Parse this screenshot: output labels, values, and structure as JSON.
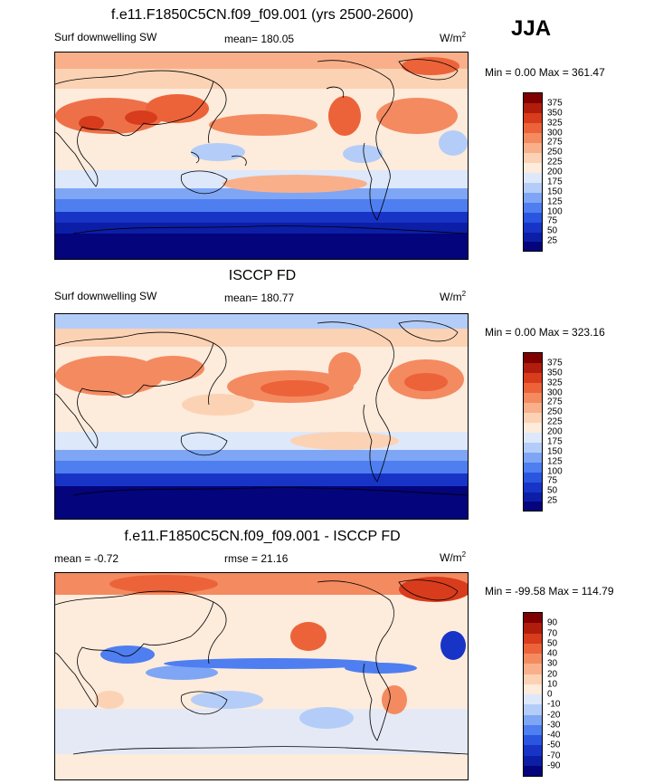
{
  "season": "JJA",
  "panels": [
    {
      "title": "f.e11.F1850C5CN.f09_f09.001 (yrs 2500-2600)",
      "left_label": "Surf downwelling SW",
      "stat": "mean= 180.05",
      "units": "W/m",
      "units_sup": "2",
      "minmax": "Min =   0.00 Max = 361.47"
    },
    {
      "title": "ISCCP FD",
      "left_label": "Surf downwelling SW",
      "stat": "mean= 180.77",
      "units": "W/m",
      "units_sup": "2",
      "minmax": "Min =   0.00 Max = 323.16"
    },
    {
      "title": "f.e11.F1850C5CN.f09_f09.001 - ISCCP FD",
      "left_label": "mean =  -0.72",
      "stat": "rmse =  21.16",
      "units": "W/m",
      "units_sup": "2",
      "minmax": "Min = -99.58 Max = 114.79"
    }
  ],
  "chart_data": [
    {
      "type": "heatmap",
      "title": "f.e11.F1850C5CN.f09_f09.001 (yrs 2500-2600)",
      "subtitle": "Surf downwelling SW",
      "units": "W/m2",
      "mean": 180.05,
      "min": 0.0,
      "max": 361.47,
      "levels": [
        25,
        50,
        75,
        100,
        125,
        150,
        175,
        200,
        225,
        250,
        275,
        300,
        325,
        350,
        375
      ],
      "colors": [
        "#04047d",
        "#0c1ea6",
        "#1834c7",
        "#2a55e0",
        "#4e7ef0",
        "#7ea6f5",
        "#b4cdf8",
        "#dde8fb",
        "#fdebdc",
        "#fcd2b4",
        "#f9b08a",
        "#f48a60",
        "#ec6339",
        "#d83c1c",
        "#b11d0c",
        "#800000"
      ],
      "legend": "right"
    },
    {
      "type": "heatmap",
      "title": "ISCCP FD",
      "subtitle": "Surf downwelling SW",
      "units": "W/m2",
      "mean": 180.77,
      "min": 0.0,
      "max": 323.16,
      "levels": [
        25,
        50,
        75,
        100,
        125,
        150,
        175,
        200,
        225,
        250,
        275,
        300,
        325,
        350,
        375
      ],
      "colors": [
        "#04047d",
        "#0c1ea6",
        "#1834c7",
        "#2a55e0",
        "#4e7ef0",
        "#7ea6f5",
        "#b4cdf8",
        "#dde8fb",
        "#fdebdc",
        "#fcd2b4",
        "#f9b08a",
        "#f48a60",
        "#ec6339",
        "#d83c1c",
        "#b11d0c",
        "#800000"
      ],
      "legend": "right"
    },
    {
      "type": "heatmap",
      "title": "f.e11.F1850C5CN.f09_f09.001 - ISCCP FD",
      "units": "W/m2",
      "mean": -0.72,
      "rmse": 21.16,
      "min": -99.58,
      "max": 114.79,
      "levels": [
        -90,
        -70,
        -50,
        -40,
        -30,
        -20,
        -10,
        0,
        10,
        20,
        30,
        40,
        50,
        70,
        90
      ],
      "colors": [
        "#04047d",
        "#0c1ea6",
        "#1834c7",
        "#2a55e0",
        "#4e7ef0",
        "#7ea6f5",
        "#b4cdf8",
        "#dde8fb",
        "#fdebdc",
        "#fcd2b4",
        "#f9b08a",
        "#f48a60",
        "#ec6339",
        "#d83c1c",
        "#b11d0c",
        "#800000"
      ],
      "legend": "right"
    }
  ]
}
